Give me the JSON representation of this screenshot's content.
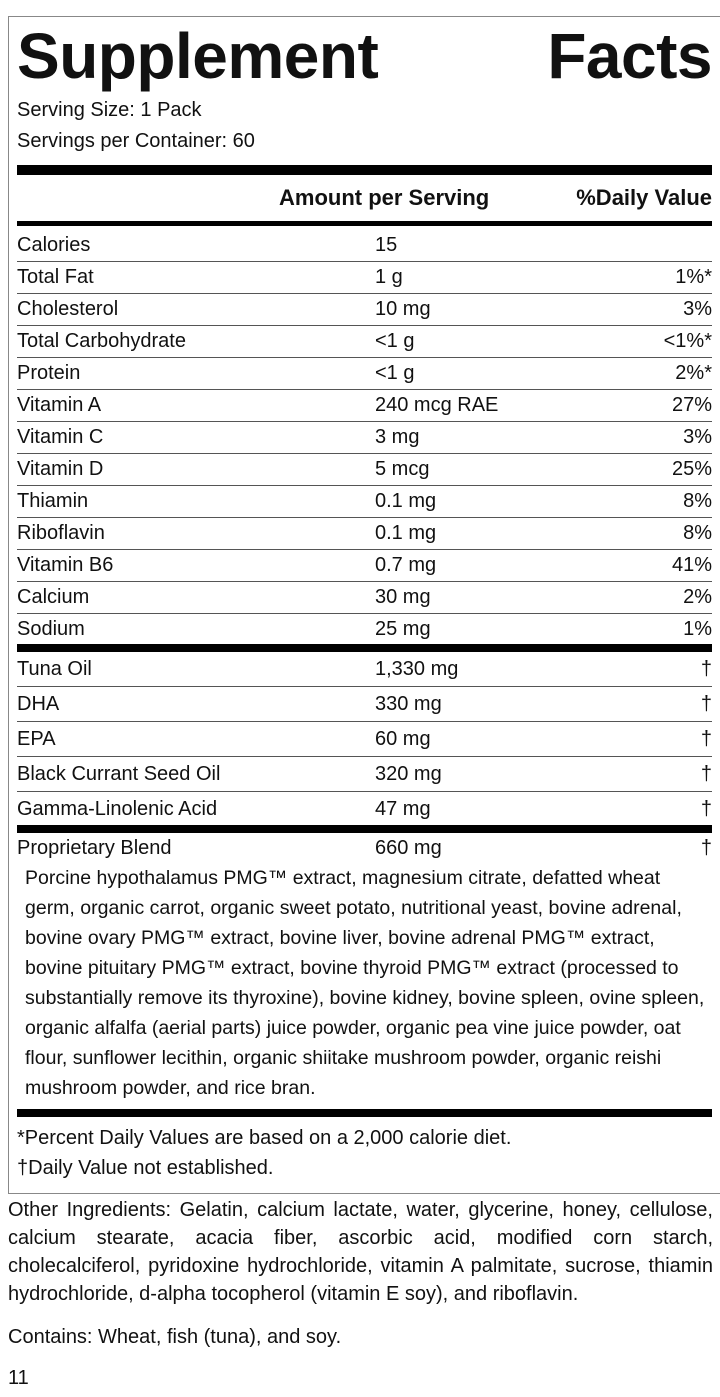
{
  "title": "Supplement Facts",
  "serving_size": "Serving Size: 1 Pack",
  "servings_per_container": "Servings per Container: 60",
  "header": {
    "amount": "Amount per Serving",
    "daily_value": "%Daily Value"
  },
  "nutrients": [
    [
      "Calories",
      "15",
      ""
    ],
    [
      "Total Fat",
      "1 g",
      "1%*"
    ],
    [
      "Cholesterol",
      "10 mg",
      "3%"
    ],
    [
      "Total Carbohydrate",
      "<1 g",
      "<1%*"
    ],
    [
      "Protein",
      "<1 g",
      "2%*"
    ],
    [
      "Vitamin A",
      "240 mcg RAE",
      "27%"
    ],
    [
      "Vitamin C",
      "3 mg",
      "3%"
    ],
    [
      "Vitamin D",
      "5 mcg",
      "25%"
    ],
    [
      "Thiamin",
      "0.1 mg",
      "8%"
    ],
    [
      "Riboflavin",
      "0.1 mg",
      "8%"
    ],
    [
      "Vitamin B6",
      "0.7 mg",
      "41%"
    ],
    [
      "Calcium",
      "30 mg",
      "2%"
    ],
    [
      "Sodium",
      "25 mg",
      "1%"
    ]
  ],
  "other_nutrients": [
    [
      "Tuna Oil",
      "1,330 mg",
      "†"
    ],
    [
      "DHA",
      "330 mg",
      "†"
    ],
    [
      "EPA",
      "60 mg",
      "†"
    ],
    [
      "Black Currant Seed Oil",
      "320 mg",
      "†"
    ],
    [
      "Gamma-Linolenic Acid",
      "47 mg",
      "†"
    ]
  ],
  "blend": {
    "name": "Proprietary Blend",
    "amount": "660 mg",
    "daily_value": "†",
    "ingredients": "Porcine hypothalamus PMG™ extract, magnesium citrate, defatted wheat germ, organic carrot, organic sweet potato, nutritional yeast, bovine adrenal, bovine ovary PMG™ extract, bovine liver, bovine adrenal PMG™ extract, bovine pituitary PMG™ extract, bovine thyroid PMG™ extract (processed to substantially remove its thyroxine), bovine kidney, bovine spleen, ovine spleen, organic alfalfa (aerial parts) juice powder, organic pea vine juice powder, oat flour, sunflower lecithin, organic shiitake mushroom powder, organic reishi mushroom powder, and rice bran."
  },
  "footnotes": [
    "*Percent Daily Values are based on a 2,000 calorie diet.",
    "†Daily Value not established."
  ],
  "other_ingredients": "Other Ingredients: Gelatin, calcium lactate, water, glycerine, honey, cellulose, calcium stearate, acacia fiber, ascorbic acid, modified corn starch, cholecalciferol, pyridoxine hydrochloride, vitamin A palmitate, sucrose, thiamin hydrochloride, d-alpha tocopherol (vitamin E soy), and riboflavin.",
  "contains": "Contains: Wheat, fish (tuna), and soy.",
  "page_number": "11"
}
